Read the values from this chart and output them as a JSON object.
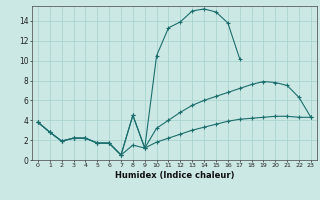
{
  "xlabel": "Humidex (Indice chaleur)",
  "bg_color": "#cce8e4",
  "grid_color": "#aad4d0",
  "line_color": "#1a6e6e",
  "xlim": [
    -0.5,
    23.5
  ],
  "ylim": [
    0,
    15.5
  ],
  "xticks": [
    0,
    1,
    2,
    3,
    4,
    5,
    6,
    7,
    8,
    9,
    10,
    11,
    12,
    13,
    14,
    15,
    16,
    17,
    18,
    19,
    20,
    21,
    22,
    23
  ],
  "yticks": [
    0,
    2,
    4,
    6,
    8,
    10,
    12,
    14
  ],
  "line1_x": [
    0,
    1,
    2,
    3,
    4,
    5,
    6,
    7,
    8,
    9,
    10,
    11,
    12,
    13,
    14,
    15,
    16,
    17
  ],
  "line1_y": [
    3.8,
    2.8,
    1.9,
    2.2,
    2.2,
    1.7,
    1.7,
    0.5,
    4.5,
    1.2,
    10.5,
    13.3,
    13.9,
    15.0,
    15.2,
    14.9,
    13.8,
    10.2
  ],
  "line2_x": [
    0,
    1,
    2,
    3,
    4,
    5,
    6,
    7,
    8,
    9,
    10,
    11,
    12,
    13,
    14,
    15,
    16,
    17,
    18,
    19,
    20,
    21,
    22,
    23
  ],
  "line2_y": [
    3.8,
    2.8,
    1.9,
    2.2,
    2.2,
    1.7,
    1.7,
    0.5,
    4.5,
    1.2,
    3.2,
    4.0,
    4.8,
    5.5,
    6.0,
    6.4,
    6.8,
    7.2,
    7.6,
    7.9,
    7.8,
    7.5,
    6.3,
    4.3
  ],
  "line3_x": [
    0,
    1,
    2,
    3,
    4,
    5,
    6,
    7,
    8,
    9,
    10,
    11,
    12,
    13,
    14,
    15,
    16,
    17,
    18,
    19,
    20,
    21,
    22,
    23
  ],
  "line3_y": [
    3.8,
    2.8,
    1.9,
    2.2,
    2.2,
    1.7,
    1.7,
    0.5,
    1.5,
    1.2,
    1.8,
    2.2,
    2.6,
    3.0,
    3.3,
    3.6,
    3.9,
    4.1,
    4.2,
    4.3,
    4.4,
    4.4,
    4.3,
    4.3
  ]
}
